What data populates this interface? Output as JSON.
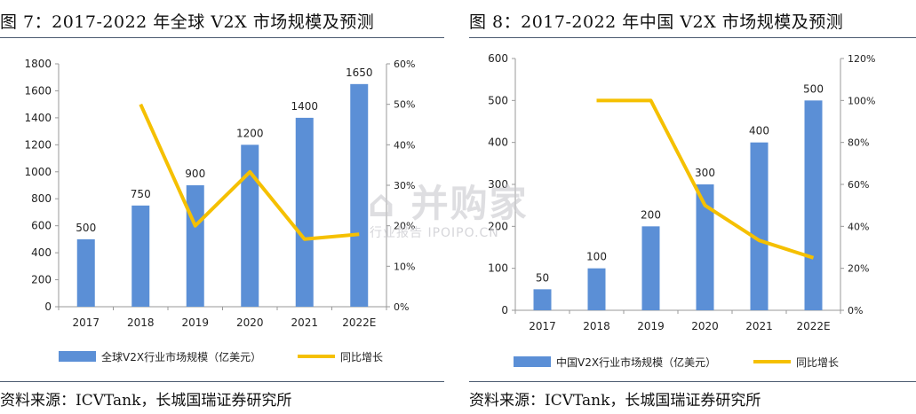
{
  "chart_data": [
    {
      "type": "bar+line",
      "title": "图 7：2017-2022 年全球 V2X 市场规模及预测",
      "categories": [
        "2017",
        "2018",
        "2019",
        "2020",
        "2021",
        "2022E"
      ],
      "series": [
        {
          "name": "全球V2X行业市场规模（亿美元）",
          "type": "bar",
          "axis": "left",
          "values": [
            500,
            750,
            900,
            1200,
            1400,
            1650
          ],
          "color": "#5b8fd6"
        },
        {
          "name": "同比增长",
          "type": "line",
          "axis": "right",
          "values": [
            null,
            0.5,
            0.2,
            0.333,
            0.167,
            0.179
          ],
          "color": "#f5c000"
        }
      ],
      "data_labels": [
        "500",
        "750",
        "900",
        "1200",
        "1400",
        "1650"
      ],
      "y_left": {
        "min": 0,
        "max": 1800,
        "ticks": [
          "0",
          "200",
          "400",
          "600",
          "800",
          "1000",
          "1200",
          "1400",
          "1600",
          "1800"
        ]
      },
      "y_right": {
        "min": 0,
        "max": 0.6,
        "ticks": [
          "0%",
          "10%",
          "20%",
          "30%",
          "40%",
          "50%",
          "60%"
        ]
      },
      "grid": false,
      "legend_position": "bottom",
      "source": "资料来源：ICVTank，长城国瑞证券研究所"
    },
    {
      "type": "bar+line",
      "title": "图 8：2017-2022 年中国 V2X 市场规模及预测",
      "categories": [
        "2017",
        "2018",
        "2019",
        "2020",
        "2021",
        "2022E"
      ],
      "series": [
        {
          "name": "中国V2X行业市场规模（亿美元）",
          "type": "bar",
          "axis": "left",
          "values": [
            50,
            100,
            200,
            300,
            400,
            500
          ],
          "color": "#5b8fd6"
        },
        {
          "name": "同比增长",
          "type": "line",
          "axis": "right",
          "values": [
            null,
            1.0,
            1.0,
            0.5,
            0.333,
            0.25
          ],
          "color": "#f5c000"
        }
      ],
      "data_labels": [
        "50",
        "100",
        "200",
        "300",
        "400",
        "500"
      ],
      "y_left": {
        "min": 0,
        "max": 600,
        "ticks": [
          "0",
          "100",
          "200",
          "300",
          "400",
          "500",
          "600"
        ]
      },
      "y_right": {
        "min": 0,
        "max": 1.2,
        "ticks": [
          "0%",
          "20%",
          "40%",
          "60%",
          "80%",
          "100%",
          "120%"
        ]
      },
      "grid": false,
      "legend_position": "bottom",
      "source": "资料来源：ICVTank，长城国瑞证券研究所"
    }
  ],
  "watermark": {
    "main": "⌂ 并购家",
    "sub": "行业报告 IPOIPO.CN"
  }
}
